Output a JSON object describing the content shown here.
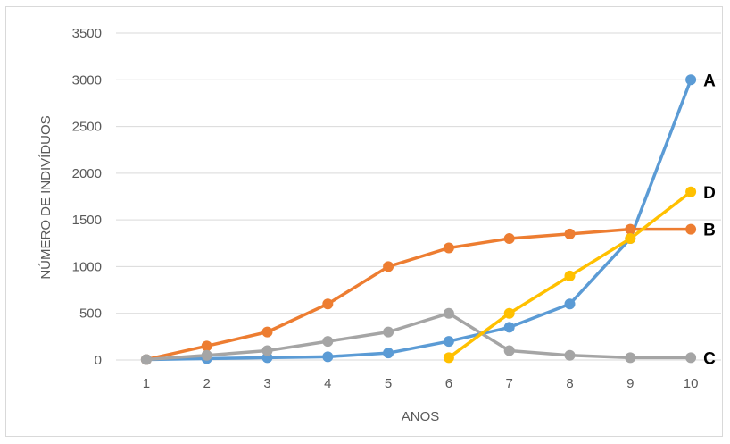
{
  "chart_data": {
    "type": "line",
    "title": "",
    "xlabel": "ANOS",
    "ylabel": "NÚMERO DE INDIVÍDUOS",
    "ylim": [
      0,
      3500
    ],
    "yticks": [
      0,
      500,
      1000,
      1500,
      2000,
      2500,
      3000,
      3500
    ],
    "x": [
      1,
      2,
      3,
      4,
      5,
      6,
      7,
      8,
      9,
      10
    ],
    "grid": true,
    "legend": "none",
    "series": [
      {
        "name": "A",
        "color": "#5b9bd5",
        "values": [
          5,
          15,
          25,
          35,
          75,
          200,
          350,
          600,
          1300,
          3000
        ]
      },
      {
        "name": "B",
        "color": "#ed7d31",
        "values": [
          5,
          150,
          300,
          600,
          1000,
          1200,
          1300,
          1350,
          1400,
          1400
        ]
      },
      {
        "name": "C",
        "color": "#a5a5a5",
        "values": [
          5,
          50,
          100,
          200,
          300,
          500,
          100,
          50,
          25,
          25
        ]
      },
      {
        "name": "D",
        "color": "#ffc000",
        "values": [
          null,
          null,
          null,
          null,
          null,
          25,
          500,
          900,
          1300,
          1800
        ]
      }
    ]
  }
}
